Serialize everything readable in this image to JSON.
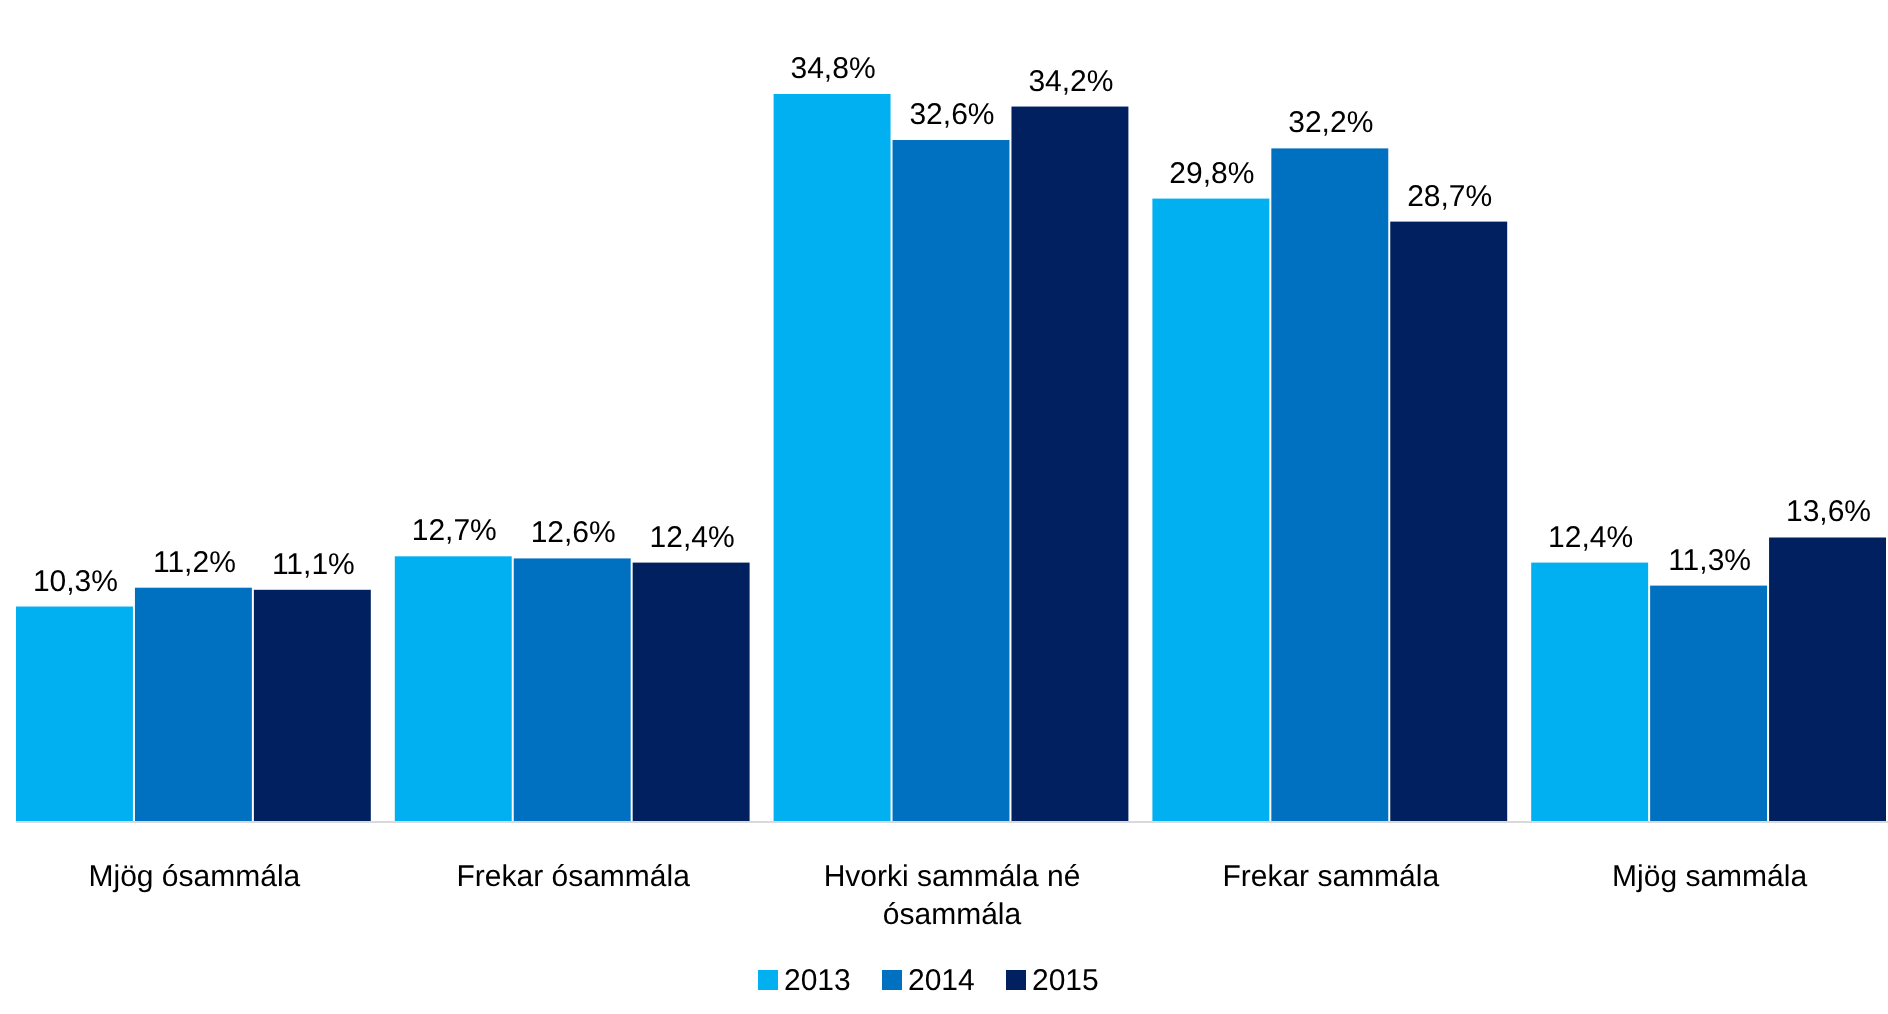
{
  "chart_data": {
    "type": "bar",
    "categories": [
      "Mjög ósammála",
      "Frekar ósammála",
      "Hvorki sammála né ósammála",
      "Frekar sammála",
      "Mjög sammála"
    ],
    "series": [
      {
        "name": "2013",
        "color": "#00b0f0",
        "values": [
          10.3,
          12.7,
          34.8,
          29.8,
          12.4
        ],
        "value_labels": [
          "10,3%",
          "12,7%",
          "34,8%",
          "29,8%",
          "12,4%"
        ]
      },
      {
        "name": "2014",
        "color": "#0070c0",
        "values": [
          11.2,
          12.6,
          32.6,
          32.2,
          11.3
        ],
        "value_labels": [
          "11,2%",
          "12,6%",
          "32,6%",
          "32,2%",
          "11,3%"
        ]
      },
      {
        "name": "2015",
        "color": "#002060",
        "values": [
          11.1,
          12.4,
          34.2,
          28.7,
          13.6
        ],
        "value_labels": [
          "11,1%",
          "12,4%",
          "34,2%",
          "28,7%",
          "13,6%"
        ]
      }
    ],
    "legend": "bottom"
  }
}
